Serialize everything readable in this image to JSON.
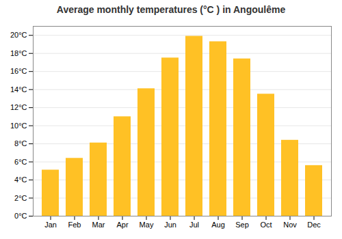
{
  "chart_data": {
    "type": "bar",
    "title": "Average monthly temperatures (°C ) in Angoulême",
    "categories": [
      "Jan",
      "Feb",
      "Mar",
      "Apr",
      "May",
      "Jun",
      "Jul",
      "Aug",
      "Sep",
      "Oct",
      "Nov",
      "Dec"
    ],
    "values": [
      5.1,
      6.4,
      8.1,
      11.0,
      14.1,
      17.5,
      19.9,
      19.3,
      17.4,
      13.5,
      8.4,
      5.6
    ],
    "color": "#FFC125",
    "ylim": [
      0,
      21
    ],
    "yticks": [
      {
        "value": 0,
        "label": "0°C"
      },
      {
        "value": 2,
        "label": "2°C"
      },
      {
        "value": 4,
        "label": "4°C"
      },
      {
        "value": 6,
        "label": "6°C"
      },
      {
        "value": 8,
        "label": "8°C"
      },
      {
        "value": 10,
        "label": "10°C"
      },
      {
        "value": 12,
        "label": "12°C"
      },
      {
        "value": 14,
        "label": "14°C"
      },
      {
        "value": 16,
        "label": "16°C"
      },
      {
        "value": 18,
        "label": "18°C"
      },
      {
        "value": 20,
        "label": "20°C"
      }
    ],
    "grid": true
  }
}
